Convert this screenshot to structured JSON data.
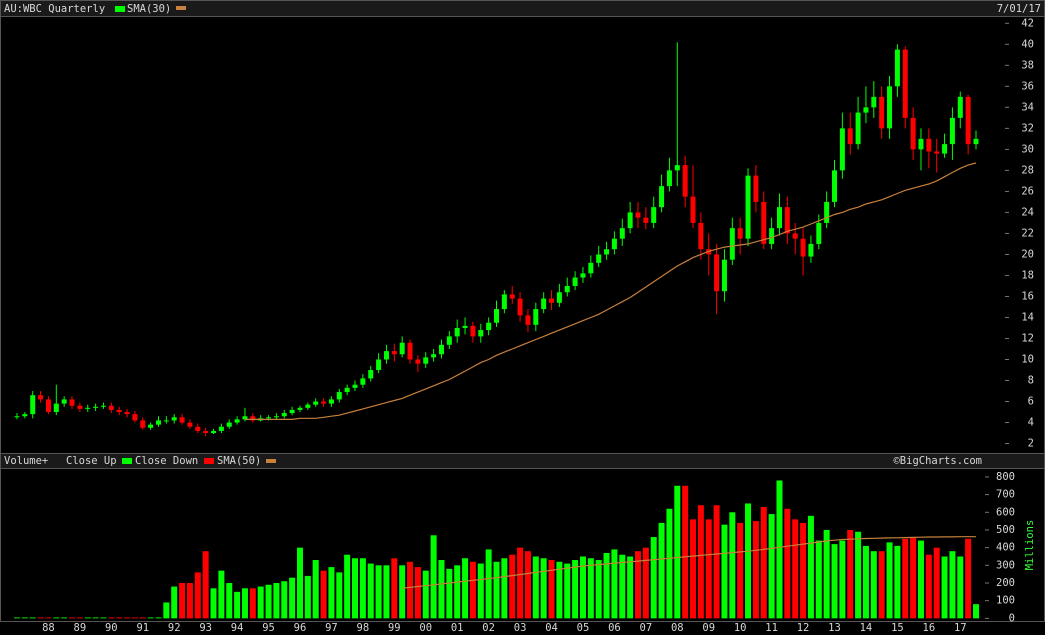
{
  "chart_data": [
    {
      "type": "candlestick",
      "title": "AU:WBC Quarterly",
      "date": "7/01/17",
      "up_color": "#00ff00",
      "down_color": "#ff0000",
      "ylim": [
        1.1,
        42.6
      ],
      "yticks": [
        2,
        4,
        6,
        8,
        10,
        12,
        14,
        16,
        18,
        20,
        22,
        24,
        26,
        28,
        30,
        32,
        34,
        36,
        38,
        40,
        42
      ],
      "ohlc": {
        "open": [
          4.5,
          4.6,
          4.8,
          6.6,
          6.2,
          5.0,
          5.8,
          6.2,
          5.6,
          5.3,
          5.4,
          5.5,
          5.6,
          5.2,
          5.0,
          4.8,
          4.2,
          3.5,
          3.8,
          4.2,
          4.2,
          4.5,
          4.0,
          3.6,
          3.2,
          3.0,
          3.2,
          3.6,
          4.0,
          4.3,
          4.6,
          4.2,
          4.4,
          4.5,
          4.6,
          4.9,
          5.2,
          5.4,
          5.7,
          6.0,
          5.8,
          6.2,
          6.9,
          7.3,
          7.6,
          8.2,
          9.0,
          10.0,
          10.8,
          10.5,
          11.6,
          10.0,
          9.6,
          10.2,
          10.5,
          11.4,
          12.2,
          13.0,
          13.2,
          12.2,
          12.8,
          13.5,
          14.8,
          16.2,
          15.8,
          14.2,
          13.3,
          14.8,
          15.8,
          15.4,
          16.4,
          17.0,
          17.8,
          18.2,
          19.2,
          20.0,
          20.5,
          21.5,
          22.5,
          24.0,
          23.5,
          23.0,
          24.5,
          26.5,
          28.0,
          28.5,
          25.5,
          23.0,
          20.5,
          20.0,
          16.5,
          19.5,
          22.5,
          21.5,
          27.5,
          25.0,
          21.0,
          22.5,
          24.5,
          22.0,
          21.5,
          19.8,
          21.0,
          23.0,
          25.0,
          28.0,
          32.0,
          30.5,
          33.5,
          34.0,
          35.0,
          32.0,
          36.0,
          39.5,
          33.0,
          30.0,
          31.0,
          29.8,
          29.6,
          30.5,
          33.0,
          35.0,
          30.5
        ],
        "high": [
          4.9,
          5.0,
          7.0,
          7.0,
          6.5,
          7.6,
          6.5,
          6.5,
          5.9,
          5.7,
          5.8,
          5.9,
          5.9,
          5.5,
          5.3,
          5.1,
          4.5,
          4.0,
          4.6,
          4.6,
          4.8,
          4.8,
          4.3,
          3.9,
          3.5,
          3.4,
          3.9,
          4.3,
          4.6,
          5.4,
          4.9,
          4.7,
          4.7,
          4.9,
          5.2,
          5.5,
          5.6,
          5.9,
          6.3,
          6.3,
          6.5,
          7.2,
          7.6,
          8.0,
          8.6,
          9.4,
          10.6,
          11.4,
          11.5,
          12.2,
          11.9,
          10.4,
          10.7,
          11.0,
          11.9,
          12.7,
          13.8,
          14.0,
          13.6,
          13.4,
          14.0,
          15.6,
          16.6,
          17.0,
          16.4,
          14.8,
          15.4,
          16.4,
          16.6,
          17.2,
          17.8,
          18.4,
          18.8,
          19.9,
          20.8,
          21.2,
          22.2,
          23.4,
          25.0,
          25.0,
          24.5,
          25.5,
          27.6,
          29.2,
          40.2,
          29.4,
          28.5,
          24.0,
          22.0,
          21.0,
          20.5,
          23.5,
          23.5,
          28.2,
          28.5,
          26.0,
          23.5,
          25.8,
          25.5,
          23.0,
          22.5,
          21.8,
          23.8,
          26.0,
          29.0,
          33.5,
          33.5,
          35.0,
          36.0,
          36.5,
          36.0,
          37.0,
          40.0,
          39.8,
          34.0,
          32.0,
          32.0,
          31.0,
          31.5,
          34.0,
          35.5,
          35.2,
          31.8
        ],
        "low": [
          4.3,
          4.4,
          4.4,
          5.9,
          4.8,
          4.7,
          5.5,
          5.3,
          5.0,
          5.0,
          5.1,
          5.3,
          4.9,
          4.7,
          4.5,
          4.0,
          3.3,
          3.3,
          3.6,
          3.9,
          3.9,
          3.8,
          3.4,
          3.0,
          2.7,
          2.9,
          3.0,
          3.4,
          3.8,
          4.1,
          4.0,
          4.1,
          4.2,
          4.3,
          4.4,
          4.7,
          5.0,
          5.2,
          5.5,
          5.5,
          5.5,
          5.9,
          6.6,
          7.0,
          7.3,
          7.9,
          8.7,
          9.6,
          9.8,
          10.2,
          9.6,
          8.8,
          9.2,
          9.8,
          10.1,
          11.0,
          11.6,
          12.4,
          11.6,
          11.6,
          12.3,
          13.1,
          14.4,
          15.3,
          13.6,
          12.6,
          12.7,
          14.4,
          14.7,
          15.0,
          16.0,
          16.6,
          17.3,
          17.8,
          18.8,
          19.5,
          20.0,
          20.8,
          22.0,
          22.5,
          22.4,
          22.5,
          24.0,
          26.0,
          26.5,
          24.5,
          22.5,
          19.5,
          18.0,
          14.3,
          15.5,
          19.0,
          20.0,
          20.8,
          24.0,
          20.5,
          20.5,
          21.8,
          21.0,
          20.0,
          18.0,
          19.2,
          20.5,
          22.5,
          24.5,
          27.2,
          29.5,
          30.0,
          32.5,
          33.0,
          31.0,
          31.0,
          35.0,
          32.0,
          29.0,
          28.0,
          28.2,
          27.8,
          29.2,
          29.0,
          32.0,
          29.5,
          30.0
        ],
        "close": [
          4.6,
          4.8,
          6.6,
          6.2,
          5.0,
          5.8,
          6.2,
          5.6,
          5.3,
          5.4,
          5.5,
          5.6,
          5.2,
          5.0,
          4.8,
          4.2,
          3.5,
          3.8,
          4.2,
          4.2,
          4.5,
          4.0,
          3.6,
          3.2,
          3.0,
          3.2,
          3.6,
          4.0,
          4.3,
          4.6,
          4.2,
          4.4,
          4.5,
          4.6,
          4.9,
          5.2,
          5.4,
          5.7,
          6.0,
          5.8,
          6.2,
          6.9,
          7.3,
          7.6,
          8.2,
          9.0,
          10.0,
          10.8,
          10.5,
          11.6,
          10.0,
          9.6,
          10.2,
          10.5,
          11.4,
          12.2,
          13.0,
          13.2,
          12.2,
          12.8,
          13.5,
          14.8,
          16.2,
          15.8,
          14.2,
          13.3,
          14.8,
          15.8,
          15.4,
          16.4,
          17.0,
          17.8,
          18.2,
          19.2,
          20.0,
          20.5,
          21.5,
          22.5,
          24.0,
          23.5,
          23.0,
          24.5,
          26.5,
          28.0,
          28.5,
          25.5,
          23.0,
          20.5,
          20.0,
          16.5,
          19.5,
          22.5,
          21.5,
          27.5,
          25.0,
          21.0,
          22.5,
          24.5,
          22.0,
          21.5,
          19.8,
          21.0,
          23.0,
          25.0,
          28.0,
          32.0,
          30.5,
          33.5,
          34.0,
          35.0,
          32.0,
          36.0,
          39.5,
          33.0,
          30.0,
          31.0,
          29.8,
          29.6,
          30.5,
          33.0,
          35.0,
          30.5,
          31.0
        ]
      },
      "sma": {
        "name": "SMA(30)",
        "color": "#c8803c",
        "values": [
          null,
          null,
          null,
          null,
          null,
          null,
          null,
          null,
          null,
          null,
          null,
          null,
          null,
          null,
          null,
          null,
          null,
          null,
          null,
          null,
          null,
          null,
          null,
          null,
          null,
          null,
          null,
          null,
          null,
          4.3,
          4.3,
          4.3,
          4.3,
          4.3,
          4.3,
          4.3,
          4.4,
          4.4,
          4.4,
          4.5,
          4.6,
          4.7,
          4.9,
          5.1,
          5.3,
          5.5,
          5.7,
          5.9,
          6.1,
          6.3,
          6.6,
          6.9,
          7.2,
          7.5,
          7.8,
          8.1,
          8.5,
          8.9,
          9.3,
          9.7,
          10.0,
          10.4,
          10.7,
          11.0,
          11.3,
          11.6,
          11.9,
          12.2,
          12.5,
          12.8,
          13.1,
          13.4,
          13.7,
          14.0,
          14.3,
          14.7,
          15.1,
          15.5,
          15.9,
          16.4,
          16.9,
          17.4,
          17.9,
          18.4,
          18.9,
          19.3,
          19.7,
          20.0,
          20.3,
          20.5,
          20.7,
          20.8,
          20.9,
          21.0,
          21.2,
          21.4,
          21.6,
          21.9,
          22.2,
          22.4,
          22.6,
          22.9,
          23.2,
          23.5,
          23.8,
          24.0,
          24.3,
          24.5,
          24.8,
          25.0,
          25.2,
          25.5,
          25.8,
          26.1,
          26.3,
          26.5,
          26.7,
          27.0,
          27.4,
          27.8,
          28.2,
          28.5,
          28.7
        ]
      }
    },
    {
      "type": "bar",
      "title": "Volume+",
      "watermark": "©BigCharts.com",
      "ylabel": "Millions",
      "legend": [
        {
          "name": "Close Up",
          "color": "#00ff00"
        },
        {
          "name": "Close Down",
          "color": "#ff0000"
        }
      ],
      "ylim": [
        -15,
        845
      ],
      "yticks": [
        0,
        100,
        200,
        300,
        400,
        500,
        600,
        700,
        800
      ],
      "categories": [
        null,
        null,
        null,
        null,
        "88",
        null,
        null,
        null,
        "89",
        null,
        null,
        null,
        "90",
        null,
        null,
        null,
        "91",
        null,
        null,
        null,
        "92",
        null,
        null,
        null,
        "93",
        null,
        null,
        null,
        "94",
        null,
        null,
        null,
        "95",
        null,
        null,
        null,
        "96",
        null,
        null,
        null,
        "97",
        null,
        null,
        null,
        "98",
        null,
        null,
        null,
        "99",
        null,
        null,
        null,
        "00",
        null,
        null,
        null,
        "01",
        null,
        null,
        null,
        "02",
        null,
        null,
        null,
        "03",
        null,
        null,
        null,
        "04",
        null,
        null,
        null,
        "05",
        null,
        null,
        null,
        "06",
        null,
        null,
        null,
        "07",
        null,
        null,
        null,
        "08",
        null,
        null,
        null,
        "09",
        null,
        null,
        null,
        "10",
        null,
        null,
        null,
        "11",
        null,
        null,
        null,
        "12",
        null,
        null,
        null,
        "13",
        null,
        null,
        null,
        "14",
        null,
        null,
        null,
        "15",
        null,
        null,
        null,
        "16",
        null,
        null,
        null,
        "17",
        null,
        null
      ],
      "values": [
        5,
        5,
        5,
        5,
        5,
        5,
        5,
        5,
        5,
        5,
        5,
        5,
        5,
        5,
        5,
        5,
        5,
        5,
        5,
        90,
        180,
        200,
        200,
        260,
        380,
        170,
        270,
        200,
        150,
        170,
        170,
        180,
        190,
        200,
        210,
        230,
        400,
        240,
        330,
        270,
        290,
        260,
        360,
        340,
        340,
        310,
        300,
        300,
        340,
        300,
        320,
        290,
        270,
        470,
        330,
        280,
        300,
        340,
        320,
        310,
        390,
        320,
        340,
        360,
        400,
        380,
        350,
        340,
        330,
        320,
        310,
        330,
        350,
        340,
        330,
        370,
        390,
        360,
        350,
        380,
        400,
        460,
        540,
        620,
        750,
        750,
        560,
        640,
        560,
        640,
        530,
        600,
        540,
        650,
        550,
        630,
        590,
        780,
        620,
        560,
        540,
        580,
        440,
        500,
        420,
        440,
        500,
        490,
        410,
        380,
        380,
        430,
        410,
        450,
        460,
        440,
        360,
        400,
        350,
        380,
        350,
        450,
        80
      ],
      "sma": {
        "name": "SMA(50)",
        "color": "#c8803c",
        "values": [
          null,
          null,
          null,
          null,
          null,
          null,
          null,
          null,
          null,
          null,
          null,
          null,
          null,
          null,
          null,
          null,
          null,
          null,
          null,
          null,
          null,
          null,
          null,
          null,
          null,
          null,
          null,
          null,
          null,
          null,
          null,
          null,
          null,
          null,
          null,
          null,
          null,
          null,
          null,
          null,
          null,
          null,
          null,
          null,
          null,
          null,
          null,
          null,
          null,
          170,
          175,
          180,
          185,
          190,
          195,
          200,
          205,
          210,
          215,
          220,
          225,
          230,
          236,
          242,
          248,
          254,
          260,
          266,
          272,
          278,
          284,
          290,
          296,
          300,
          304,
          308,
          312,
          316,
          320,
          324,
          328,
          332,
          336,
          340,
          344,
          348,
          352,
          356,
          360,
          364,
          368,
          372,
          376,
          380,
          385,
          390,
          396,
          402,
          408,
          414,
          420,
          426,
          432,
          438,
          442,
          446,
          448,
          450,
          452,
          453,
          454,
          455,
          456,
          457,
          458,
          459,
          460,
          460,
          461,
          461,
          462,
          462,
          462
        ]
      }
    }
  ]
}
